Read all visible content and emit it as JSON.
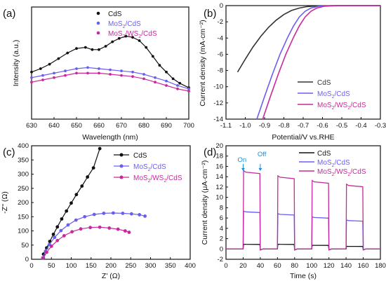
{
  "colors": {
    "cds": "#111111",
    "mos2": "#6a5df0",
    "ternary": "#c8289c",
    "annot": "#1a8fd8"
  },
  "chart_data": [
    {
      "panel": "(a)",
      "type": "line",
      "xlabel": "Wavelength (nm)",
      "ylabel": "Intensity (a.u.)",
      "xlim": [
        630,
        700
      ],
      "xticks": [
        "630",
        "640",
        "650",
        "660",
        "670",
        "680",
        "690",
        "700"
      ],
      "legend_position": "top-center",
      "series": [
        {
          "name": "CdS",
          "label_main": "CdS",
          "label_sub": "",
          "label_tail": "",
          "color": "#111111",
          "x": [
            630,
            634,
            638,
            642,
            646,
            650,
            654,
            657,
            660,
            663,
            666,
            669,
            672,
            675,
            678,
            681,
            684,
            687,
            690,
            693,
            696,
            700
          ],
          "y": [
            0.42,
            0.45,
            0.49,
            0.54,
            0.59,
            0.63,
            0.64,
            0.62,
            0.62,
            0.65,
            0.69,
            0.72,
            0.74,
            0.73,
            0.7,
            0.64,
            0.56,
            0.48,
            0.42,
            0.36,
            0.32,
            0.28
          ]
        },
        {
          "name": "MoS2/CdS",
          "label_main": "MoS",
          "label_sub": "2",
          "label_tail": "/CdS",
          "color": "#6a5df0",
          "x": [
            630,
            635,
            640,
            645,
            650,
            655,
            660,
            665,
            670,
            675,
            680,
            685,
            690,
            695,
            700
          ],
          "y": [
            0.37,
            0.39,
            0.41,
            0.43,
            0.45,
            0.46,
            0.45,
            0.44,
            0.43,
            0.42,
            0.4,
            0.37,
            0.34,
            0.3,
            0.27
          ]
        },
        {
          "name": "MoS2/WS2/CdS",
          "label_main": "MoS",
          "label_sub": "2",
          "label_tail": "/WS",
          "label_sub2": "2",
          "label_tail2": "/CdS",
          "color": "#c8289c",
          "x": [
            630,
            635,
            640,
            645,
            650,
            655,
            660,
            665,
            670,
            675,
            680,
            685,
            690,
            695,
            700
          ],
          "y": [
            0.33,
            0.35,
            0.37,
            0.39,
            0.41,
            0.41,
            0.41,
            0.4,
            0.39,
            0.38,
            0.36,
            0.33,
            0.3,
            0.27,
            0.25
          ]
        }
      ]
    },
    {
      "panel": "(b)",
      "type": "line",
      "xlabel": "Potential/V vs.RHE",
      "ylabel": "Current density (mA·cm⁻²)",
      "xlim": [
        -1.1,
        -0.3
      ],
      "ylim": [
        -14,
        0
      ],
      "xticks": [
        "-1.1",
        "-1.0",
        "-0.9",
        "-0.8",
        "-0.7",
        "-0.6",
        "-0.5",
        "-0.4",
        "-0.3"
      ],
      "yticks": [
        "0",
        "-2",
        "-4",
        "-6",
        "-8",
        "-10",
        "-12",
        "-14"
      ],
      "legend_position": "bottom-right",
      "series": [
        {
          "name": "CdS",
          "color": "#333333",
          "x": [
            -1.04,
            -1.0,
            -0.96,
            -0.92,
            -0.88,
            -0.84,
            -0.8,
            -0.76,
            -0.72,
            -0.68,
            -0.62,
            -0.5,
            -0.3
          ],
          "y": [
            -8.2,
            -6.6,
            -5.1,
            -3.8,
            -2.7,
            -1.8,
            -1.1,
            -0.6,
            -0.3,
            -0.12,
            -0.03,
            0,
            0
          ]
        },
        {
          "name": "MoS2/CdS",
          "color": "#6a5df0",
          "x": [
            -0.94,
            -0.9,
            -0.86,
            -0.82,
            -0.78,
            -0.75,
            -0.72,
            -0.69,
            -0.66,
            -0.62,
            -0.55,
            -0.3
          ],
          "y": [
            -14,
            -11.2,
            -8.5,
            -6.0,
            -3.9,
            -2.5,
            -1.4,
            -0.7,
            -0.3,
            -0.08,
            0,
            0
          ]
        },
        {
          "name": "MoS2/WS2/CdS",
          "color": "#c8289c",
          "x": [
            -0.91,
            -0.87,
            -0.83,
            -0.79,
            -0.75,
            -0.72,
            -0.69,
            -0.66,
            -0.63,
            -0.59,
            -0.52,
            -0.3
          ],
          "y": [
            -14,
            -11.2,
            -8.5,
            -6.0,
            -3.9,
            -2.5,
            -1.4,
            -0.7,
            -0.3,
            -0.08,
            0,
            0
          ]
        }
      ]
    },
    {
      "panel": "(c)",
      "type": "scatter",
      "xlabel": "Z' (Ω)",
      "ylabel": "-Z'' (Ω)",
      "xlim": [
        0,
        400
      ],
      "ylim": [
        0,
        400
      ],
      "xticks": [
        "0",
        "50",
        "100",
        "150",
        "200",
        "250",
        "300",
        "350",
        "400"
      ],
      "yticks": [
        "0",
        "50",
        "100",
        "150",
        "200",
        "250",
        "300",
        "350",
        "400"
      ],
      "legend_position": "top-right",
      "series": [
        {
          "name": "CdS",
          "color": "#111111",
          "fit": "line",
          "x": [
            30,
            38,
            46,
            55,
            65,
            76,
            88,
            100,
            113,
            127,
            141,
            156,
            172
          ],
          "y": [
            18,
            40,
            63,
            88,
            114,
            142,
            170,
            198,
            228,
            258,
            290,
            322,
            390
          ]
        },
        {
          "name": "MoS2/CdS",
          "color": "#6a5df0",
          "fit": "arc",
          "x": [
            28,
            35,
            45,
            58,
            74,
            92,
            112,
            134,
            158,
            182,
            206,
            230,
            252,
            272,
            286
          ],
          "y": [
            5,
            28,
            52,
            77,
            101,
            121,
            138,
            150,
            158,
            162,
            163,
            162,
            160,
            157,
            152
          ]
        },
        {
          "name": "MoS2/WS2/CdS",
          "color": "#c8289c",
          "fit": "arc",
          "x": [
            30,
            38,
            50,
            65,
            82,
            102,
            124,
            148,
            172,
            196,
            218,
            236,
            246
          ],
          "y": [
            5,
            25,
            46,
            66,
            83,
            97,
            107,
            112,
            113,
            110,
            106,
            100,
            95
          ]
        }
      ]
    },
    {
      "panel": "(d)",
      "type": "line",
      "xlabel": "Time (s)",
      "ylabel": "Current density (μA·cm⁻²)",
      "xlim": [
        0,
        180
      ],
      "ylim": [
        -2,
        20
      ],
      "xticks": [
        "0",
        "20",
        "40",
        "60",
        "80",
        "100",
        "120",
        "140",
        "160",
        "180"
      ],
      "yticks": [
        "-2",
        "0",
        "2",
        "4",
        "6",
        "8",
        "10",
        "12",
        "14",
        "16",
        "18",
        "20"
      ],
      "legend_position": "top-right",
      "light_cycles": [
        [
          20,
          40
        ],
        [
          60,
          80
        ],
        [
          100,
          120
        ],
        [
          140,
          160
        ]
      ],
      "annotations": [
        {
          "text": "On",
          "x": 20,
          "y": 15
        },
        {
          "text": "Off",
          "x": 40,
          "y": 15
        }
      ],
      "series": [
        {
          "name": "CdS",
          "color": "#111111",
          "plateau": [
            0.9,
            0.9,
            0.7,
            0.5
          ]
        },
        {
          "name": "MoS2/CdS",
          "color": "#6a5df0",
          "plateau": [
            7.2,
            6.7,
            6.1,
            5.5
          ]
        },
        {
          "name": "MoS2/WS2/CdS",
          "color": "#c8289c",
          "plateau": [
            14.9,
            13.9,
            13.0,
            12.3
          ]
        }
      ]
    }
  ]
}
